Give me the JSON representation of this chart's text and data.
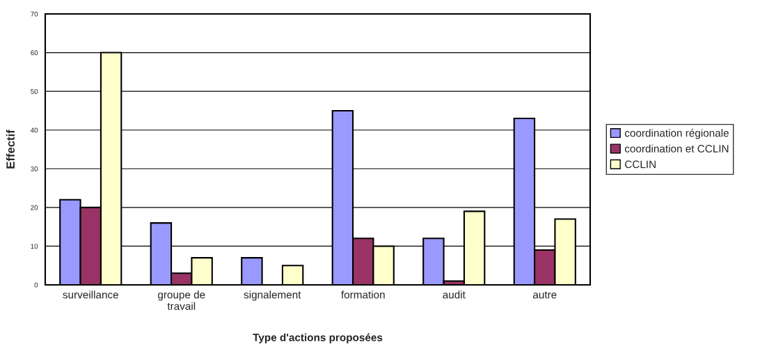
{
  "chart_data": {
    "type": "bar",
    "xlabel": "Type d'actions proposées",
    "ylabel": "Effectif",
    "categories": [
      "surveillance",
      "groupe de travail",
      "signalement",
      "formation",
      "audit",
      "autre"
    ],
    "series": [
      {
        "name": "coordination régionale",
        "color": "#9999ff",
        "values": [
          22,
          16,
          7,
          45,
          12,
          43
        ]
      },
      {
        "name": "coordination et CCLIN",
        "color": "#993366",
        "values": [
          20,
          3,
          null,
          12,
          1,
          9
        ]
      },
      {
        "name": "CCLIN",
        "color": "#ffffcc",
        "values": [
          60,
          7,
          5,
          10,
          19,
          17
        ]
      }
    ],
    "ylim": [
      0,
      70
    ],
    "yticks": [
      0,
      10,
      20,
      30,
      40,
      50,
      60,
      70
    ],
    "grid": "y",
    "legend": "right"
  }
}
